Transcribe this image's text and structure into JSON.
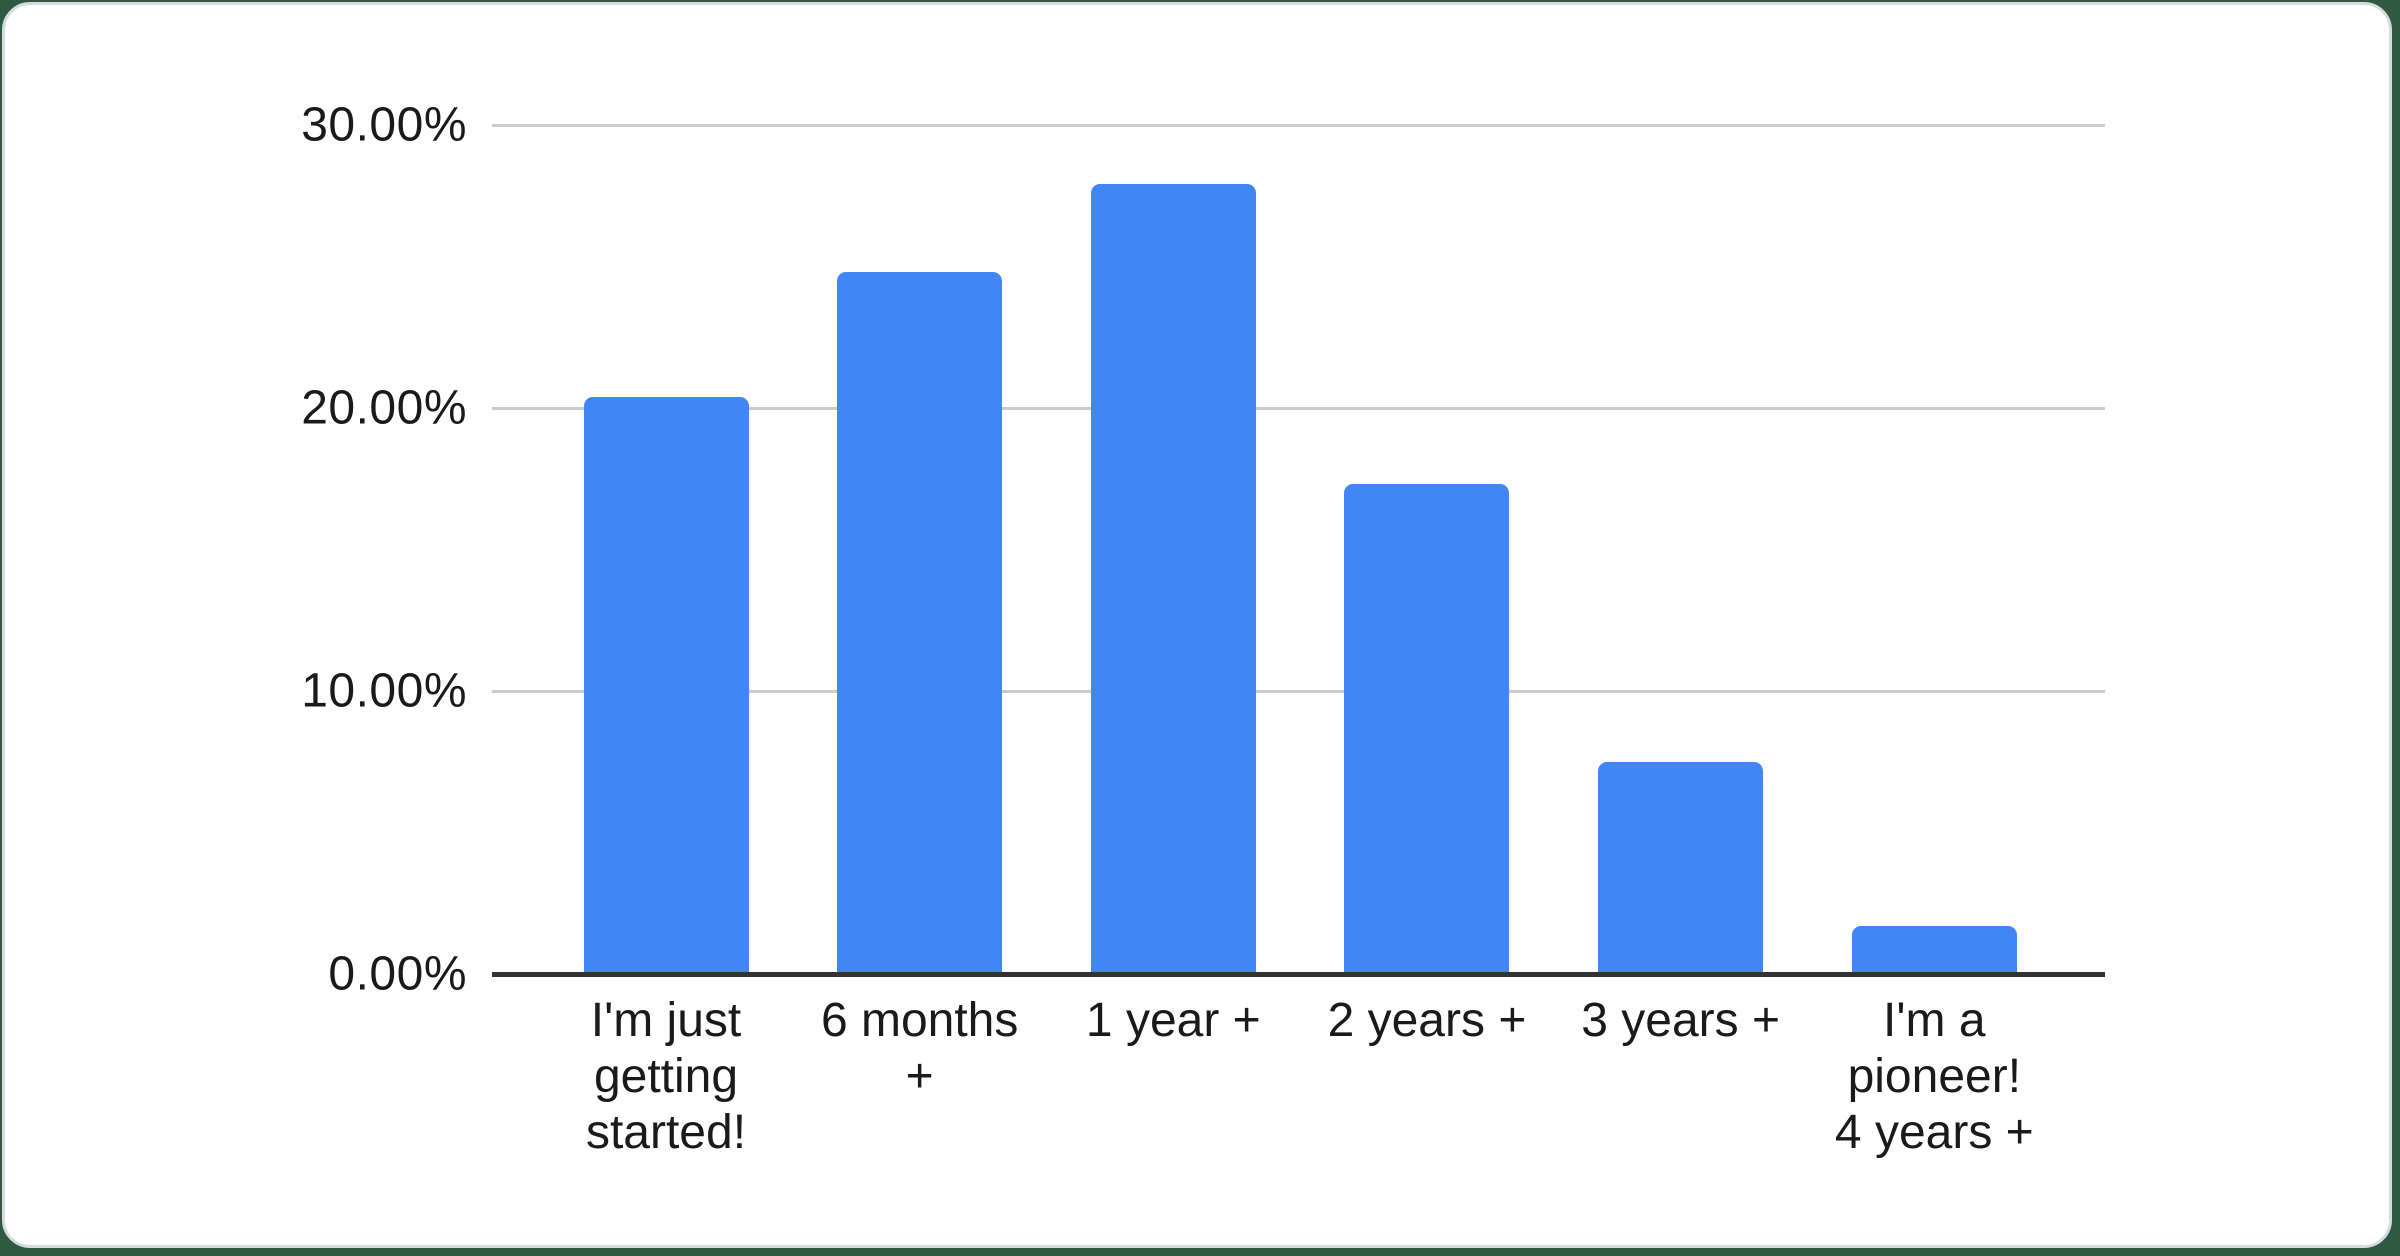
{
  "page": {
    "background_color": "#2f5940",
    "card_background": "#ffffff",
    "card_border_color": "#d6dbde"
  },
  "chart_data": {
    "type": "bar",
    "title": "",
    "xlabel": "",
    "ylabel": "",
    "legend": "none",
    "grid": true,
    "categories": [
      "I'm just getting started!",
      "6 months +",
      "1 year +",
      "2 years +",
      "3 years +",
      "I'm a pioneer! 4 years +"
    ],
    "category_display_lines": [
      [
        "I'm just",
        "getting",
        "started!"
      ],
      [
        "6 months",
        "+"
      ],
      [
        "1 year +"
      ],
      [
        "2 years +"
      ],
      [
        "3 years +"
      ],
      [
        "I'm a",
        "pioneer!",
        "4 years +"
      ]
    ],
    "values": [
      20.4,
      24.8,
      27.9,
      17.3,
      7.5,
      1.7
    ],
    "unit": "%",
    "ylim": [
      0,
      30
    ],
    "y_ticks": [
      {
        "value": 0,
        "label": "0.00%"
      },
      {
        "value": 10,
        "label": "10.00%"
      },
      {
        "value": 20,
        "label": "20.00%"
      },
      {
        "value": 30,
        "label": "30.00%"
      }
    ],
    "bar_color": "#4285f4",
    "gridline_color": "#cccccc",
    "axis_line_color": "#333333",
    "label_color": "#1a1a1a"
  }
}
